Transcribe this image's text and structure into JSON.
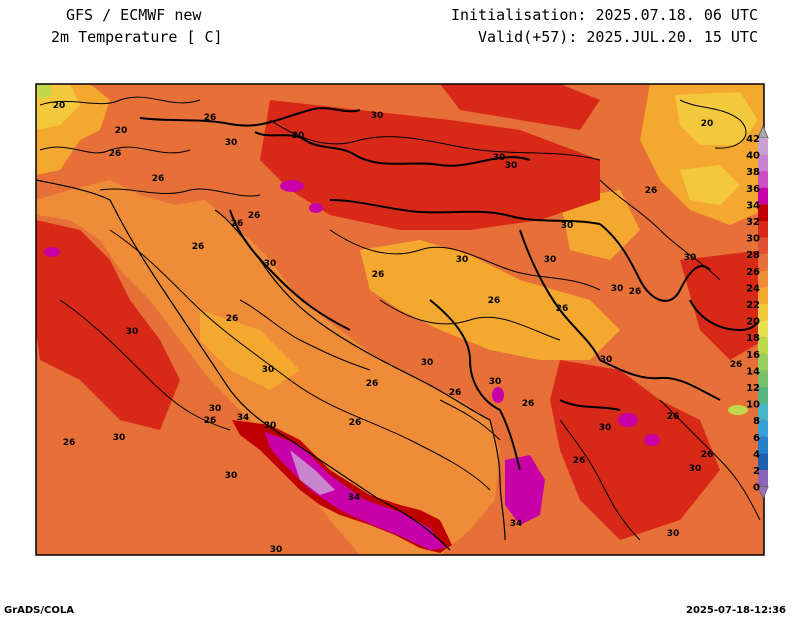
{
  "header": {
    "title_line1": "GFS / ECMWF new",
    "title_line2": "2m Temperature [ C]",
    "init_line": "Initialisation: 2025.07.18. 06 UTC",
    "valid_line": "Valid(+57): 2025.JUL.20. 15 UTC"
  },
  "footer": {
    "left": "GrADS/COLA",
    "right": "2025-07-18-12:36"
  },
  "colorbar": {
    "levels": [
      "42",
      "40",
      "38",
      "36",
      "34",
      "32",
      "30",
      "28",
      "26",
      "24",
      "22",
      "20",
      "18",
      "16",
      "14",
      "12",
      "10",
      "8",
      "6",
      "4",
      "2",
      "0"
    ],
    "colors": [
      "#c8a0d2",
      "#c884cc",
      "#c850c0",
      "#c800a8",
      "#c00000",
      "#d82818",
      "#e05030",
      "#e67038",
      "#ee8c38",
      "#f4a830",
      "#f4c83c",
      "#e8e050",
      "#c0d84c",
      "#98cc5c",
      "#78c068",
      "#58b480",
      "#48b4c8",
      "#38a0d8",
      "#2880c8",
      "#2060b0",
      "#8a64b8",
      "#9870bc"
    ]
  },
  "contour_labels": [
    {
      "t": "20"
    },
    {
      "t": "20"
    },
    {
      "t": "26"
    },
    {
      "t": "30"
    },
    {
      "t": "30"
    },
    {
      "t": "26"
    },
    {
      "t": "26"
    },
    {
      "t": "26"
    },
    {
      "t": "26"
    },
    {
      "t": "26"
    },
    {
      "t": "30"
    },
    {
      "t": "26"
    },
    {
      "t": "30"
    },
    {
      "t": "26"
    },
    {
      "t": "30"
    },
    {
      "t": "30"
    },
    {
      "t": "30"
    },
    {
      "t": "26"
    },
    {
      "t": "30"
    },
    {
      "t": "26"
    },
    {
      "t": "30"
    },
    {
      "t": "26"
    },
    {
      "t": "30"
    },
    {
      "t": "30"
    },
    {
      "t": "26"
    },
    {
      "t": "30"
    },
    {
      "t": "30"
    },
    {
      "t": "26"
    },
    {
      "t": "26"
    },
    {
      "t": "30"
    },
    {
      "t": "26"
    },
    {
      "t": "30"
    },
    {
      "t": "34"
    },
    {
      "t": "30"
    },
    {
      "t": "26"
    },
    {
      "t": "26"
    },
    {
      "t": "30"
    },
    {
      "t": "26"
    },
    {
      "t": "30"
    },
    {
      "t": "30"
    },
    {
      "t": "26"
    },
    {
      "t": "34"
    },
    {
      "t": "34"
    },
    {
      "t": "30"
    },
    {
      "t": "26"
    },
    {
      "t": "30"
    },
    {
      "t": "30"
    },
    {
      "t": "26"
    },
    {
      "t": "20"
    },
    {
      "t": "26"
    },
    {
      "t": "30"
    },
    {
      "t": "30"
    }
  ]
}
